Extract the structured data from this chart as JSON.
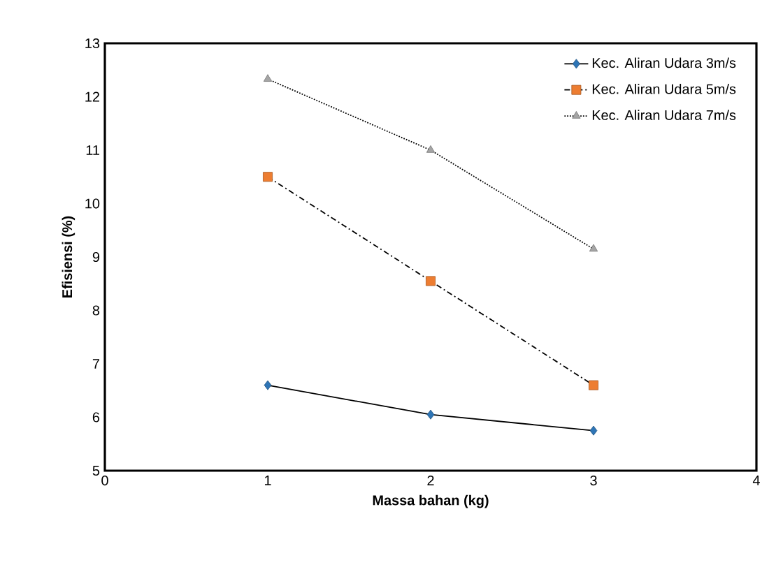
{
  "chart_data": {
    "type": "line",
    "xlabel": "Massa bahan (kg)",
    "ylabel": "Efisiensi (%)",
    "xlim": [
      0,
      4
    ],
    "xticks": [
      0,
      1,
      2,
      3,
      4
    ],
    "ylim": [
      5,
      13
    ],
    "yticks": [
      5,
      6,
      7,
      8,
      9,
      10,
      11,
      12,
      13
    ],
    "grid": false,
    "legend": "top right",
    "series": [
      {
        "name": "Kec. Aliran Udara 3m/s",
        "color": "#2e75b6",
        "marker": "diamond",
        "line_style": "solid",
        "x": [
          1,
          2,
          3
        ],
        "values": [
          6.6,
          6.05,
          5.75
        ]
      },
      {
        "name": "Kec. Aliran Udara 5m/s",
        "color": "#ed7d31",
        "marker": "square",
        "line_style": "dashdot",
        "x": [
          1,
          2,
          3
        ],
        "values": [
          10.5,
          8.55,
          6.6
        ]
      },
      {
        "name": "Kec. Aliran Udara 7m/s",
        "color": "#a5a5a5",
        "marker": "triangle",
        "line_style": "dotted",
        "x": [
          1,
          2,
          3
        ],
        "values": [
          12.33,
          11.0,
          9.15
        ]
      }
    ]
  }
}
